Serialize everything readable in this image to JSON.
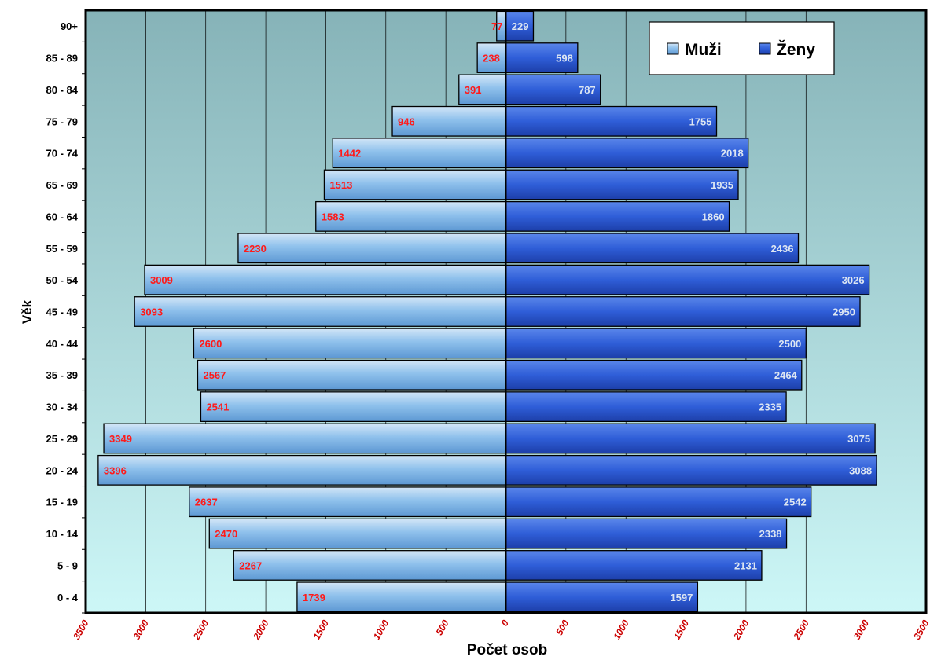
{
  "chart_data": {
    "type": "bar",
    "orientation": "horizontal-diverging",
    "ylabel": "Věk",
    "xlabel": "Počet osob",
    "categories": [
      "0 - 4",
      "5 - 9",
      "10 - 14",
      "15 - 19",
      "20 - 24",
      "25 - 29",
      "30 - 34",
      "35 - 39",
      "40 - 44",
      "45 - 49",
      "50 - 54",
      "55 - 59",
      "60 - 64",
      "65 - 69",
      "70 - 74",
      "75 - 79",
      "80 - 84",
      "85 - 89",
      "90+"
    ],
    "series": [
      {
        "name": "Muži",
        "side": "left",
        "color": "#8fc1ec",
        "values": [
          1739,
          2267,
          2470,
          2637,
          3396,
          3349,
          2541,
          2567,
          2600,
          3093,
          3009,
          2230,
          1583,
          1513,
          1442,
          946,
          391,
          238,
          77
        ]
      },
      {
        "name": "Ženy",
        "side": "right",
        "color": "#2f5ed8",
        "values": [
          1597,
          2131,
          2338,
          2542,
          3088,
          3075,
          2335,
          2464,
          2500,
          2950,
          3026,
          2436,
          1860,
          1935,
          2018,
          1755,
          787,
          598,
          229
        ]
      }
    ],
    "xlim": [
      -3500,
      3500
    ],
    "xticks": [
      -3500,
      -3000,
      -2500,
      -2000,
      -1500,
      -1000,
      -500,
      0,
      500,
      1000,
      1500,
      2000,
      2500,
      3000,
      3500
    ],
    "xtick_labels": [
      "3500",
      "3000",
      "2500",
      "2000",
      "1500",
      "1000",
      "500",
      "0",
      "500",
      "1000",
      "1500",
      "2000",
      "2500",
      "3000",
      "3500"
    ],
    "grid": true,
    "legend_position": "top-right",
    "colors": {
      "male_label": "#ff1a1a",
      "female_label": "#dde6f2",
      "background_top": "#86b3b8",
      "background_bottom": "#cdf7f7",
      "frame": "#000000"
    }
  }
}
